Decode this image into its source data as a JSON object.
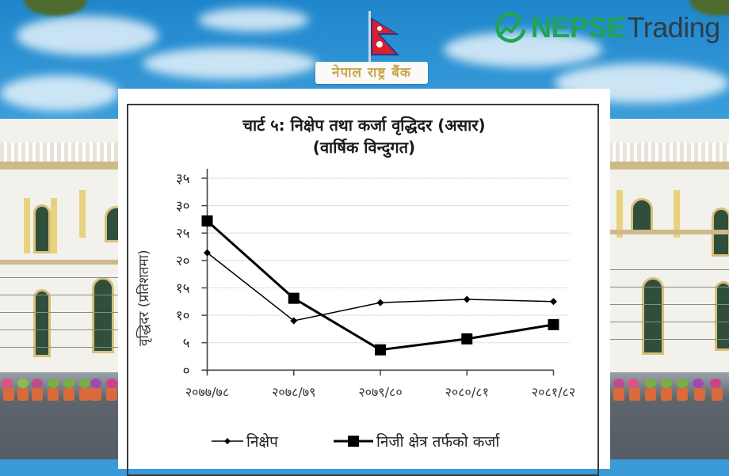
{
  "branding": {
    "logo_primary": "NEPSE",
    "logo_secondary": "Trading",
    "logo_color": "#1fa555",
    "building_sign": "नेपाल राष्ट्र बैंक"
  },
  "chart_data": {
    "type": "line",
    "title": "चार्ट ५: निक्षेप तथा कर्जा वृद्धिदर (असार)",
    "subtitle": "(वार्षिक विन्दुगत)",
    "xlabel": "",
    "ylabel": "वृद्धिदर (प्रतिशतमा)",
    "categories": [
      "२०७७/७८",
      "२०७८/७९",
      "२०७९/८०",
      "२०८०/८१",
      "२०८१/८२"
    ],
    "yticks": [
      0,
      5,
      10,
      15,
      20,
      25,
      30,
      35
    ],
    "ytick_labels": [
      "०",
      "५",
      "१०",
      "१५",
      "२०",
      "२५",
      "३०",
      "३५"
    ],
    "ylim": [
      0,
      35
    ],
    "grid": true,
    "legend_position": "bottom",
    "series": [
      {
        "name": "निक्षेप",
        "marker": "diamond",
        "line_width": 1.5,
        "color": "#000000",
        "values": [
          21.4,
          9.0,
          12.3,
          12.9,
          12.5
        ]
      },
      {
        "name": "निजी क्षेत्र तर्फको कर्जा",
        "marker": "square",
        "line_width": 3,
        "color": "#000000",
        "values": [
          27.2,
          13.1,
          3.7,
          5.7,
          8.3
        ]
      }
    ]
  }
}
